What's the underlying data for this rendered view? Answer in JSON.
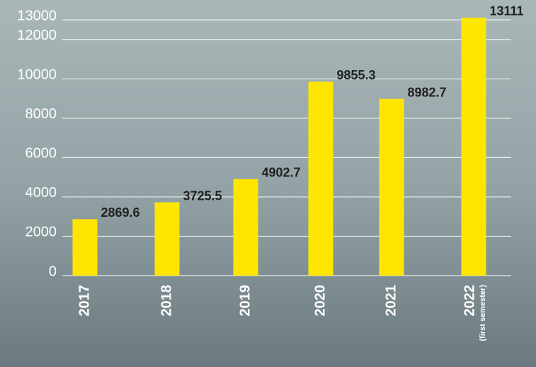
{
  "chart_data": {
    "type": "bar",
    "categories": [
      "2017",
      "2018",
      "2019",
      "2020",
      "2021",
      "2022"
    ],
    "category_sublabels": [
      null,
      null,
      null,
      null,
      null,
      "(first semester)"
    ],
    "values": [
      2869.6,
      3725.5,
      4902.7,
      9855.3,
      8982.7,
      13111
    ],
    "color": "#ffe600",
    "ylim": [
      0,
      13000
    ],
    "yticks": [
      0,
      2000,
      4000,
      6000,
      8000,
      10000,
      12000,
      13000
    ],
    "grid": true
  }
}
